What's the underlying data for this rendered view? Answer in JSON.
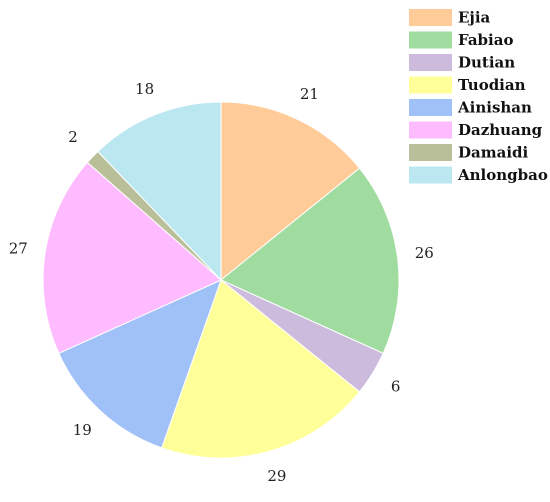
{
  "chart_data": {
    "type": "pie",
    "title": "",
    "categories": [
      "Ejia",
      "Fabiao",
      "Dutian",
      "Tuodian",
      "Ainishan",
      "Dazhuang",
      "Damaidi",
      "Anlongbao"
    ],
    "values": [
      21,
      26,
      6,
      29,
      19,
      27,
      2,
      18
    ],
    "colors": [
      "#ffcc99",
      "#a0dca0",
      "#ccbbdd",
      "#ffff99",
      "#a0c0f8",
      "#ffbbff",
      "#b9bf99",
      "#bbe8f0"
    ],
    "labels": [
      "21",
      "26",
      "6",
      "29",
      "19",
      "27",
      "2",
      "18"
    ],
    "start": "12 o'clock",
    "direction": "clockwise",
    "legend": "top-right"
  }
}
